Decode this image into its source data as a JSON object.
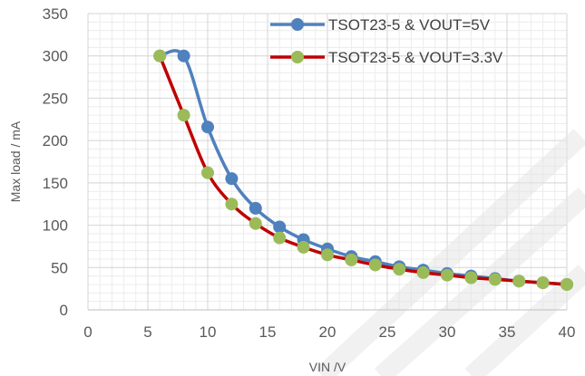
{
  "chart_data": {
    "type": "line",
    "xlabel": "VIN /V",
    "ylabel": "Max load / mA",
    "xlim": [
      0,
      40
    ],
    "ylim": [
      0,
      350
    ],
    "x_ticks": [
      0,
      5,
      10,
      15,
      20,
      25,
      30,
      35,
      40
    ],
    "y_ticks": [
      0,
      50,
      100,
      150,
      200,
      250,
      300,
      350
    ],
    "grid": true,
    "legend_position": "top-right",
    "series": [
      {
        "name": "TSOT23-5 & VOUT=5V",
        "color": "#4F81BD",
        "marker_color": "#4F81BD",
        "x": [
          6,
          8,
          10,
          12,
          14,
          16,
          18,
          20,
          22,
          24,
          26,
          28,
          30,
          32,
          34,
          36,
          38,
          40
        ],
        "y": [
          300,
          300,
          216,
          155,
          120,
          98,
          83,
          72,
          63,
          57,
          51,
          47,
          43,
          40,
          37,
          34,
          32,
          30
        ]
      },
      {
        "name": "TSOT23-5 & VOUT=3.3V",
        "color": "#C00000",
        "marker_color": "#9BBB59",
        "x": [
          6,
          8,
          10,
          12,
          14,
          16,
          18,
          20,
          22,
          24,
          26,
          28,
          30,
          32,
          34,
          36,
          38,
          40
        ],
        "y": [
          300,
          230,
          162,
          125,
          102,
          85,
          74,
          65,
          59,
          53,
          48,
          44,
          41,
          38,
          36,
          34,
          32,
          30
        ]
      }
    ]
  }
}
